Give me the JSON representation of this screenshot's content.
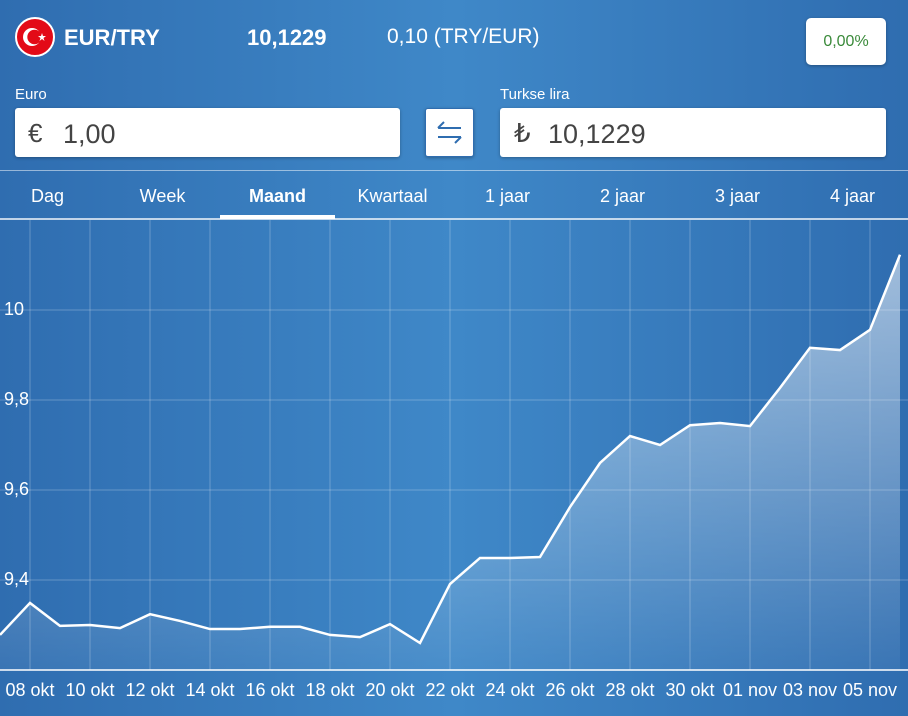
{
  "header": {
    "pair": "EUR/TRY",
    "rate": "10,1229",
    "inverse": "0,10 (TRY/EUR)",
    "change": "0,00%"
  },
  "converter": {
    "from": {
      "label": "Euro",
      "symbol": "€",
      "amount": "1,00"
    },
    "to": {
      "label": "Turkse lira",
      "symbol": "₺",
      "amount": "10,1229"
    }
  },
  "tabs": {
    "items": [
      "Dag",
      "Week",
      "Maand",
      "Kwartaal",
      "1 jaar",
      "2 jaar",
      "3 jaar",
      "4 jaar"
    ],
    "active": 2
  },
  "chart_data": {
    "type": "area",
    "categories": [
      null,
      "08 okt",
      null,
      "10 okt",
      null,
      "12 okt",
      null,
      "14 okt",
      null,
      "16 okt",
      null,
      "18 okt",
      null,
      "20 okt",
      null,
      "22 okt",
      null,
      "24 okt",
      null,
      "26 okt",
      null,
      "28 okt",
      null,
      "30 okt",
      null,
      "01 nov",
      null,
      "03 nov",
      null,
      "05 nov",
      null
    ],
    "values": [
      9.278,
      9.349,
      9.298,
      9.3,
      9.293,
      9.324,
      9.309,
      9.291,
      9.291,
      9.296,
      9.296,
      9.278,
      9.273,
      9.302,
      9.26,
      9.391,
      9.449,
      9.449,
      9.451,
      9.562,
      9.66,
      9.72,
      9.7,
      9.744,
      9.749,
      9.742,
      9.827,
      9.916,
      9.911,
      9.956,
      10.1229
    ],
    "color": "#ffffff",
    "ylim": [
      9.2,
      10.2
    ],
    "yticks": [
      {
        "value": 9.4,
        "label": "9,4"
      },
      {
        "value": 9.6,
        "label": "9,6"
      },
      {
        "value": 9.8,
        "label": "9,8"
      },
      10
    ],
    "grid": true
  }
}
